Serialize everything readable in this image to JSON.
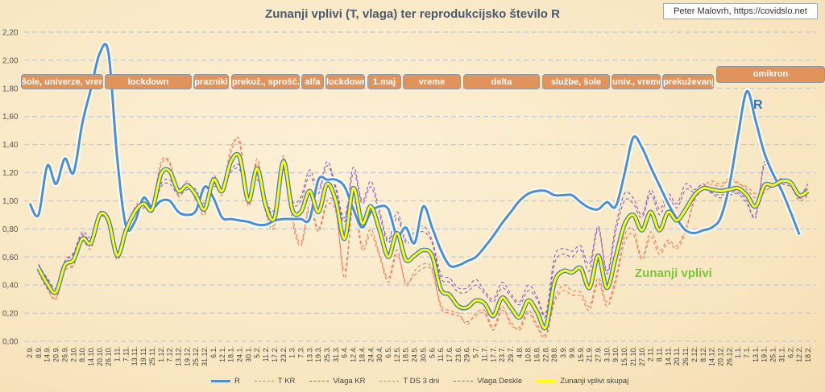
{
  "chart_data": {
    "type": "line",
    "title": "Zunanji vplivi (T, vlaga) ter reprodukcijsko število R",
    "credit": "Peter Malovrh, https://covidslo.net",
    "ylim": [
      0,
      2.2
    ],
    "yticks": [
      "0,00",
      "0,20",
      "0,40",
      "0,60",
      "0,80",
      "1,00",
      "1,20",
      "1,40",
      "1,60",
      "1,80",
      "2,00",
      "2,20"
    ],
    "grid": true,
    "legend_position": "bottom",
    "x": [
      "2.9.",
      "8.9.",
      "14.9.",
      "20.9.",
      "26.9.",
      "2.10.",
      "8.10.",
      "14.10.",
      "20.10.",
      "26.10.",
      "1.11.",
      "7.11.",
      "13.11.",
      "19.11.",
      "25.11.",
      "1.12.",
      "7.12.",
      "13.12.",
      "19.12.",
      "25.12.",
      "31.12.",
      "6.1.",
      "12.1.",
      "18.1.",
      "24.1.",
      "30.1.",
      "5.2.",
      "11.2.",
      "17.2.",
      "23.2.",
      "1.3.",
      "7.3.",
      "13.3.",
      "19.3.",
      "25.3.",
      "31.3.",
      "6.4.",
      "12.4.",
      "18.4.",
      "24.4.",
      "30.4.",
      "6.5.",
      "12.5.",
      "18.5.",
      "24.5.",
      "30.5.",
      "5.6.",
      "11.6.",
      "17.6.",
      "23.6.",
      "29.6.",
      "5.7.",
      "11.7.",
      "17.7.",
      "23.7.",
      "29.7.",
      "4.8.",
      "10.8.",
      "16.8.",
      "22.8.",
      "28.8.",
      "3.9.",
      "9.9.",
      "15.9.",
      "21.9.",
      "27.9.",
      "3.10.",
      "9.10.",
      "15.10.",
      "21.10.",
      "27.10.",
      "2.11.",
      "8.11.",
      "14.11.",
      "20.11.",
      "26.11.",
      "2.12.",
      "8.12.",
      "14.12.",
      "20.12.",
      "26.12.",
      "1.1.",
      "7.1.",
      "13.1.",
      "19.1.",
      "25.1.",
      "31.1.",
      "6.2.",
      "12.2.",
      "18.2."
    ],
    "series": [
      {
        "name": "R",
        "color": "#4a8fd4",
        "style": "solid",
        "values": [
          0.98,
          0.9,
          1.25,
          1.12,
          1.3,
          1.2,
          1.55,
          1.8,
          2.05,
          2.05,
          1.3,
          0.82,
          0.85,
          1.02,
          0.95,
          1.0,
          1.0,
          0.92,
          0.9,
          0.93,
          1.1,
          1.02,
          0.88,
          0.87,
          0.86,
          0.85,
          0.83,
          0.83,
          0.86,
          0.87,
          0.87,
          0.87,
          0.87,
          1.15,
          1.15,
          1.15,
          1.1,
          0.94,
          0.81,
          0.92,
          0.96,
          0.94,
          0.75,
          0.81,
          0.7,
          0.96,
          0.81,
          0.65,
          0.54,
          0.54,
          0.57,
          0.6,
          0.67,
          0.75,
          0.84,
          0.92,
          1.0,
          1.05,
          1.07,
          1.07,
          1.04,
          1.04,
          1.04,
          0.99,
          0.95,
          0.94,
          0.99,
          0.96,
          1.19,
          1.45,
          1.38,
          1.24,
          1.11,
          0.98,
          0.87,
          0.79,
          0.77,
          0.79,
          0.81,
          0.88,
          1.11,
          1.47,
          1.78,
          1.57,
          1.34,
          1.19,
          1.07,
          0.92,
          0.76,
          null
        ]
      },
      {
        "name": "T KR",
        "color": "#ee7a5a",
        "style": "dashed",
        "values": [
          null,
          0.5,
          0.38,
          0.3,
          0.52,
          0.55,
          0.75,
          0.68,
          0.92,
          0.84,
          0.6,
          0.8,
          0.95,
          1.02,
          0.96,
          1.28,
          1.26,
          1.05,
          1.14,
          1.02,
          0.92,
          1.18,
          1.06,
          1.38,
          1.4,
          0.98,
          1.3,
          0.93,
          0.84,
          1.3,
          0.9,
          0.7,
          0.98,
          0.8,
          1.0,
          0.95,
          0.45,
          1.0,
          0.68,
          0.8,
          0.62,
          0.45,
          0.65,
          0.4,
          0.5,
          0.55,
          0.52,
          0.26,
          0.22,
          0.2,
          0.12,
          0.2,
          0.22,
          0.1,
          0.25,
          0.12,
          0.1,
          0.22,
          0.12,
          0.05,
          0.3,
          0.4,
          0.36,
          0.35,
          0.25,
          0.45,
          0.28,
          0.45,
          0.75,
          0.8,
          0.6,
          0.78,
          0.65,
          0.72,
          0.68,
          0.8,
          1.0,
          1.08,
          1.12,
          1.1,
          1.15,
          1.12,
          1.1,
          1.05,
          1.08,
          1.1,
          1.15,
          1.14,
          1.02,
          1.05
        ]
      },
      {
        "name": "Vlaga KR",
        "color": "#8e5cc0",
        "style": "dashed",
        "values": [
          null,
          0.55,
          0.44,
          0.36,
          0.56,
          0.62,
          0.76,
          0.72,
          0.88,
          0.85,
          0.62,
          0.76,
          0.88,
          0.95,
          0.92,
          1.1,
          1.12,
          1.04,
          1.08,
          1.06,
          0.96,
          1.1,
          1.08,
          1.2,
          1.22,
          1.02,
          1.15,
          0.98,
          0.92,
          1.22,
          0.98,
          1.0,
          1.18,
          1.05,
          1.25,
          1.08,
          0.85,
          1.2,
          0.98,
          1.1,
          0.9,
          0.7,
          0.88,
          0.7,
          0.75,
          0.78,
          0.7,
          0.45,
          0.42,
          0.35,
          0.35,
          0.4,
          0.34,
          0.28,
          0.38,
          0.32,
          0.26,
          0.36,
          0.3,
          0.18,
          0.55,
          0.62,
          0.6,
          0.65,
          0.5,
          0.8,
          0.48,
          0.78,
          1.0,
          0.98,
          0.88,
          1.05,
          0.9,
          1.02,
          0.95,
          1.08,
          1.06,
          1.1,
          1.05,
          1.02,
          1.04,
          1.05,
          0.98,
          0.9,
          1.25,
          1.15,
          1.12,
          1.1,
          1.02,
          1.1
        ]
      },
      {
        "name": "T DS 3 dni",
        "color": "#ee7a5a",
        "style": "dashed",
        "values": [
          null,
          0.49,
          0.37,
          0.31,
          0.5,
          0.54,
          0.71,
          0.66,
          0.89,
          0.83,
          0.58,
          0.77,
          0.93,
          1.0,
          0.93,
          1.25,
          1.28,
          1.03,
          1.12,
          1.0,
          0.9,
          1.16,
          1.04,
          1.34,
          1.43,
          0.96,
          1.27,
          0.91,
          0.82,
          1.32,
          0.86,
          0.68,
          0.95,
          0.78,
          0.97,
          0.92,
          0.5,
          0.96,
          0.65,
          0.76,
          0.6,
          0.42,
          0.62,
          0.42,
          0.47,
          0.52,
          0.5,
          0.24,
          0.2,
          0.18,
          0.14,
          0.18,
          0.2,
          0.08,
          0.22,
          0.14,
          0.08,
          0.2,
          0.1,
          0.03,
          0.28,
          0.36,
          0.33,
          0.32,
          0.22,
          0.42,
          0.25,
          0.42,
          0.7,
          0.76,
          0.58,
          0.74,
          0.62,
          0.7,
          0.66,
          0.78,
          1.02,
          1.1,
          1.14,
          1.12,
          1.16,
          1.13,
          1.08,
          1.02,
          1.06,
          1.12,
          1.16,
          1.12,
          1.0,
          1.04
        ]
      },
      {
        "name": "Vlaga Deskle",
        "color": "#8e5cc0",
        "style": "dashed",
        "values": [
          null,
          0.54,
          0.45,
          0.38,
          0.57,
          0.63,
          0.78,
          0.74,
          0.9,
          0.86,
          0.63,
          0.78,
          0.9,
          0.97,
          0.93,
          1.12,
          1.15,
          1.06,
          1.1,
          1.08,
          0.98,
          1.12,
          1.1,
          1.22,
          1.25,
          1.04,
          1.18,
          1.0,
          0.94,
          1.25,
          1.0,
          1.03,
          1.22,
          1.08,
          1.28,
          1.1,
          0.88,
          1.24,
          1.0,
          1.14,
          0.93,
          0.72,
          0.92,
          0.72,
          0.78,
          0.82,
          0.72,
          0.48,
          0.45,
          0.38,
          0.38,
          0.44,
          0.36,
          0.3,
          0.42,
          0.34,
          0.28,
          0.4,
          0.32,
          0.2,
          0.6,
          0.66,
          0.64,
          0.68,
          0.55,
          0.82,
          0.5,
          0.82,
          1.05,
          1.02,
          0.9,
          1.08,
          0.94,
          1.05,
          0.98,
          1.12,
          1.08,
          1.12,
          1.06,
          1.04,
          1.06,
          1.06,
          1.0,
          0.88,
          1.28,
          1.18,
          1.14,
          1.12,
          1.04,
          1.12
        ]
      },
      {
        "name": "Zunanji vplivi skupaj",
        "color": "#ffff00",
        "style": "solid",
        "values": [
          null,
          0.52,
          0.41,
          0.35,
          0.54,
          0.58,
          0.73,
          0.7,
          0.9,
          0.86,
          0.61,
          0.79,
          0.92,
          0.98,
          0.94,
          1.19,
          1.21,
          1.07,
          1.11,
          1.04,
          0.94,
          1.15,
          1.07,
          1.28,
          1.31,
          1.0,
          1.23,
          0.96,
          0.88,
          1.28,
          0.94,
          0.92,
          1.07,
          0.92,
          1.12,
          1.0,
          0.73,
          1.09,
          0.84,
          0.96,
          0.79,
          0.6,
          0.77,
          0.58,
          0.61,
          0.65,
          0.61,
          0.37,
          0.33,
          0.25,
          0.24,
          0.29,
          0.27,
          0.18,
          0.31,
          0.24,
          0.17,
          0.29,
          0.21,
          0.1,
          0.42,
          0.5,
          0.49,
          0.52,
          0.38,
          0.61,
          0.38,
          0.6,
          0.83,
          0.9,
          0.79,
          0.92,
          0.79,
          0.92,
          0.86,
          0.94,
          1.04,
          1.09,
          1.08,
          1.07,
          1.08,
          1.09,
          1.04,
          0.96,
          1.11,
          1.11,
          1.14,
          1.13,
          1.04,
          1.07
        ]
      }
    ],
    "annotations": {
      "r_label": "R",
      "z_label": "Zunanji vplivi"
    },
    "periods": [
      "šole, univerze, vreme",
      "lockdown",
      "prazniki",
      "prekuž., sprošč.",
      "alfa",
      "lockdown",
      "1.maj",
      "vreme",
      "delta",
      "službe, šole",
      "univ., vreme",
      "prekuževanje",
      "omikron"
    ]
  }
}
